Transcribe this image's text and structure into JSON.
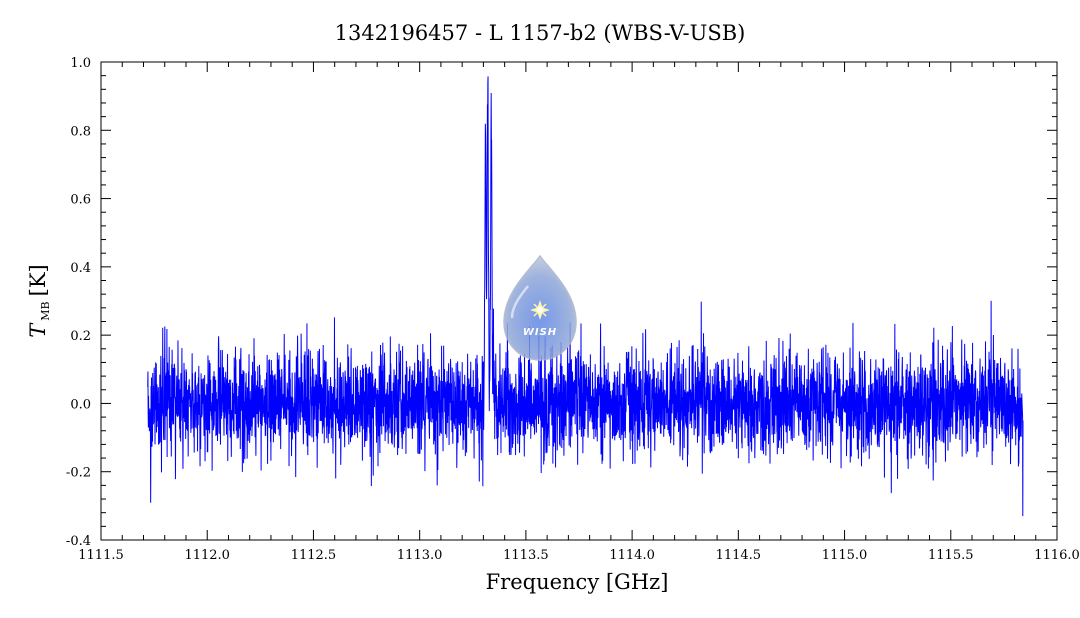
{
  "chart_data": {
    "type": "line",
    "title": "1342196457 - L 1157-b2 (WBS-V-USB)",
    "xlabel": "Frequency [GHz]",
    "ylabel_main": "T",
    "ylabel_sub": "MB",
    "ylabel_unit": "[K]",
    "xlim": [
      1111.5,
      1116.0
    ],
    "ylim": [
      -0.4,
      1.0
    ],
    "x_ticks": [
      "1111.5",
      "1112.0",
      "1112.5",
      "1113.0",
      "1113.5",
      "1114.0",
      "1114.5",
      "1115.0",
      "1115.5",
      "1116.0"
    ],
    "y_ticks": [
      "-0.4",
      "-0.2",
      "0.0",
      "0.2",
      "0.4",
      "0.6",
      "0.8",
      "1.0"
    ],
    "grid": false,
    "series": [
      {
        "color": "#0000ff",
        "x_range": [
          1111.72,
          1115.84
        ],
        "noise_rms": 0.075,
        "peaks": [
          {
            "x": 1113.32,
            "y": 0.92
          },
          {
            "x": 1113.337,
            "y": 0.82
          },
          {
            "x": 1113.31,
            "y": 0.78
          }
        ],
        "edge_dip": {
          "x": 1115.83,
          "y": -0.33
        }
      }
    ]
  },
  "logo": {
    "text": "WISH"
  }
}
